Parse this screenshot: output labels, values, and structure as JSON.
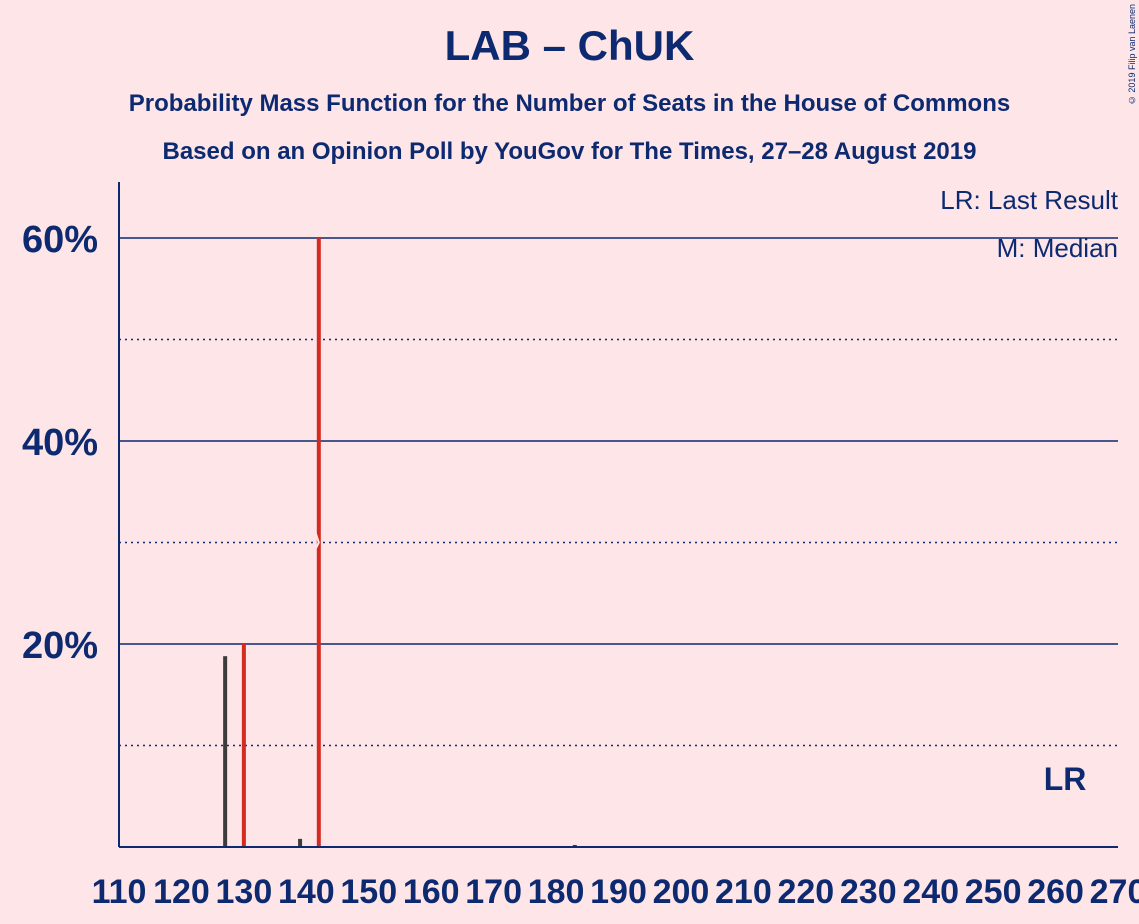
{
  "title": "LAB – ChUK",
  "subtitle1": "Probability Mass Function for the Number of Seats in the House of Commons",
  "subtitle2": "Based on an Opinion Poll by YouGov for The Times, 27–28 August 2019",
  "copyright": "© 2019 Filip van Laenen",
  "legend": {
    "last_result": "LR: Last Result",
    "median": "M: Median"
  },
  "lr_marker": "LR",
  "colors": {
    "background": "#FDE5E8",
    "axis": "#0D2A70",
    "bar": "#3C3C3C",
    "highlight": "#D42A20"
  },
  "chart_data": {
    "type": "bar",
    "title": "LAB – ChUK",
    "xlabel": "",
    "ylabel": "",
    "ylim": [
      0,
      65
    ],
    "yticks_major": [
      20,
      40,
      60
    ],
    "ytick_labels": [
      "20%",
      "40%",
      "60%"
    ],
    "yticks_minor": [
      10,
      30,
      50
    ],
    "xlim": [
      110,
      270
    ],
    "xticks": [
      110,
      120,
      130,
      140,
      150,
      160,
      170,
      180,
      190,
      200,
      210,
      220,
      230,
      240,
      250,
      260,
      270
    ],
    "bars": [
      {
        "seats": 116,
        "value": 0.05,
        "highlight": false
      },
      {
        "seats": 120,
        "value": 0.05,
        "highlight": false
      },
      {
        "seats": 127,
        "value": 18.8,
        "highlight": false
      },
      {
        "seats": 130,
        "value": 20.1,
        "highlight": true
      },
      {
        "seats": 139,
        "value": 0.8,
        "highlight": false
      },
      {
        "seats": 142,
        "value": 60.0,
        "highlight": true,
        "median": true
      },
      {
        "seats": 143,
        "value": 0.1,
        "highlight": false
      },
      {
        "seats": 183,
        "value": 0.2,
        "highlight": false
      }
    ],
    "last_result_seats": 262,
    "grid": true
  }
}
